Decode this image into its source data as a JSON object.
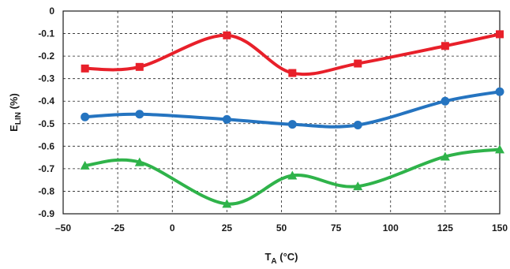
{
  "chart_data": {
    "type": "line",
    "xlabel": {
      "main": "T",
      "sub": "A",
      "unit": " (°C)"
    },
    "ylabel": {
      "main": "E",
      "sub": "LIN",
      "unit": " (%)"
    },
    "xlim": [
      -50,
      150
    ],
    "ylim": [
      -0.9,
      0
    ],
    "x_ticks": [
      -50,
      -25,
      0,
      25,
      50,
      75,
      100,
      125,
      150
    ],
    "x_tick_labels": [
      "–50",
      "-25",
      "0",
      "25",
      "50",
      "75",
      "100",
      "125",
      "150"
    ],
    "y_ticks": [
      0,
      -0.1,
      -0.2,
      -0.3,
      -0.4,
      -0.5,
      -0.6,
      -0.7,
      -0.8,
      -0.9
    ],
    "y_tick_labels": [
      "0",
      "-0.1",
      "-0.2",
      "-0.3",
      "-0.4",
      "-0.5",
      "-0.6",
      "-0.7",
      "-0.8",
      "-0.9"
    ],
    "grid": true,
    "legend": "none",
    "series": [
      {
        "color": "#e8202a",
        "marker": "square",
        "x": [
          -40,
          -15,
          25,
          55,
          85,
          125,
          150
        ],
        "y": [
          -0.255,
          -0.248,
          -0.108,
          -0.275,
          -0.233,
          -0.155,
          -0.103
        ]
      },
      {
        "color": "#2574c0",
        "marker": "circle",
        "x": [
          -40,
          -15,
          25,
          55,
          85,
          125,
          150
        ],
        "y": [
          -0.47,
          -0.458,
          -0.481,
          -0.503,
          -0.506,
          -0.4,
          -0.358
        ]
      },
      {
        "color": "#2fb34a",
        "marker": "triangle",
        "x": [
          -40,
          -15,
          25,
          55,
          85,
          125,
          150
        ],
        "y": [
          -0.686,
          -0.671,
          -0.856,
          -0.73,
          -0.778,
          -0.646,
          -0.614
        ]
      }
    ]
  }
}
